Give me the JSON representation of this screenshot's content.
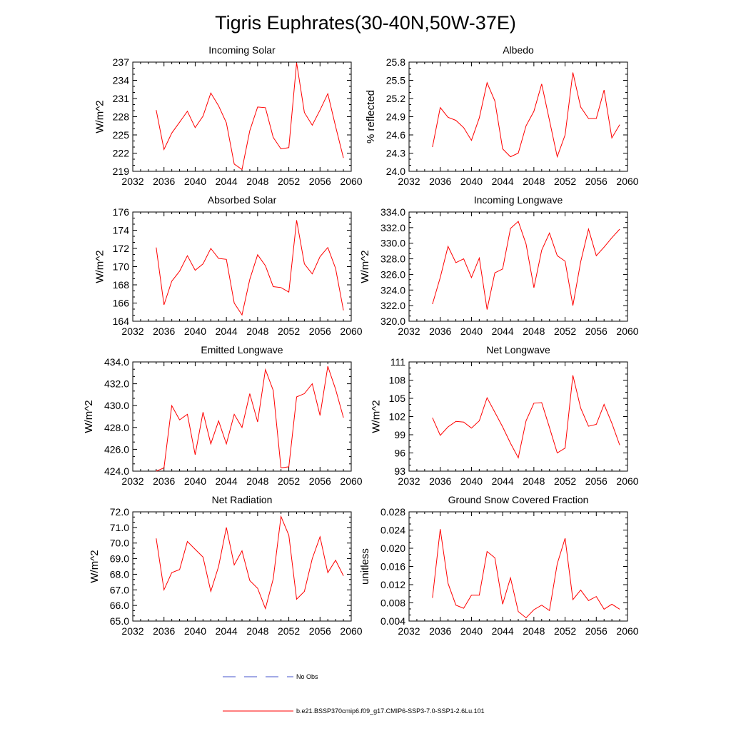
{
  "figure": {
    "title": "Tigris Euphrates(30-40N,50W-37E)"
  },
  "legend": {
    "entries": [
      {
        "label": "No Obs",
        "color": "#4455cc",
        "dashed": true
      },
      {
        "label": "b.e21.BSSP370cmip6.f09_g17.CMIP6-SSP3-7.0-SSP1-2.6Lu.101",
        "color": "#ff0000",
        "dashed": false
      }
    ]
  },
  "chart_data": [
    {
      "type": "line",
      "title": "Incoming Solar",
      "ylabel": "W/m^2",
      "xlim": [
        2032,
        2060
      ],
      "ylim": [
        219,
        237
      ],
      "xticks": [
        2032,
        2036,
        2040,
        2044,
        2048,
        2052,
        2056,
        2060
      ],
      "yticks": [
        "219",
        "222",
        "225",
        "228",
        "231",
        "234",
        "237"
      ],
      "series": [
        {
          "color": "#ff0000",
          "x": [
            2035,
            2036,
            2037,
            2038,
            2039,
            2040,
            2041,
            2042,
            2043,
            2044,
            2045,
            2046,
            2047,
            2048,
            2049,
            2050,
            2051,
            2052,
            2053,
            2054,
            2055,
            2056,
            2057,
            2058,
            2059
          ],
          "y": [
            229.1,
            222.6,
            225.3,
            227.1,
            228.9,
            226.2,
            228.1,
            231.9,
            229.8,
            227.0,
            220.2,
            219.3,
            225.7,
            229.6,
            229.5,
            224.6,
            222.7,
            222.9,
            236.9,
            228.7,
            226.6,
            229.1,
            231.8,
            226.4,
            221.2
          ]
        }
      ]
    },
    {
      "type": "line",
      "title": "Albedo",
      "ylabel": "% reflected",
      "xlim": [
        2032,
        2060
      ],
      "ylim": [
        24.0,
        25.8
      ],
      "xticks": [
        2032,
        2036,
        2040,
        2044,
        2048,
        2052,
        2056,
        2060
      ],
      "yticks": [
        "24.0",
        "24.3",
        "24.6",
        "24.9",
        "25.2",
        "25.5",
        "25.8"
      ],
      "series": [
        {
          "color": "#ff0000",
          "x": [
            2035,
            2036,
            2037,
            2038,
            2039,
            2040,
            2041,
            2042,
            2043,
            2044,
            2045,
            2046,
            2047,
            2048,
            2049,
            2050,
            2051,
            2052,
            2053,
            2054,
            2055,
            2056,
            2057,
            2058,
            2059
          ],
          "y": [
            24.4,
            25.05,
            24.89,
            24.84,
            24.72,
            24.51,
            24.88,
            25.46,
            25.16,
            24.37,
            24.24,
            24.3,
            24.75,
            24.99,
            25.44,
            24.84,
            24.24,
            24.6,
            25.63,
            25.06,
            24.87,
            24.87,
            25.34,
            24.55,
            24.77
          ]
        }
      ]
    },
    {
      "type": "line",
      "title": "Absorbed Solar",
      "ylabel": "W/m^2",
      "xlim": [
        2032,
        2060
      ],
      "ylim": [
        164,
        176
      ],
      "xticks": [
        2032,
        2036,
        2040,
        2044,
        2048,
        2052,
        2056,
        2060
      ],
      "yticks": [
        "164",
        "166",
        "168",
        "170",
        "172",
        "174",
        "176"
      ],
      "series": [
        {
          "color": "#ff0000",
          "x": [
            2035,
            2036,
            2037,
            2038,
            2039,
            2040,
            2041,
            2042,
            2043,
            2044,
            2045,
            2046,
            2047,
            2048,
            2049,
            2050,
            2051,
            2052,
            2053,
            2054,
            2055,
            2056,
            2057,
            2058,
            2059
          ],
          "y": [
            172.1,
            165.8,
            168.4,
            169.5,
            171.2,
            169.6,
            170.3,
            172.0,
            170.9,
            170.8,
            166.0,
            164.7,
            168.6,
            171.3,
            170.1,
            167.8,
            167.7,
            167.2,
            175.1,
            170.3,
            169.2,
            171.1,
            172.1,
            169.8,
            165.2
          ]
        }
      ]
    },
    {
      "type": "line",
      "title": "Incoming Longwave",
      "ylabel": "W/m^2",
      "xlim": [
        2032,
        2060
      ],
      "ylim": [
        320.0,
        334.0
      ],
      "xticks": [
        2032,
        2036,
        2040,
        2044,
        2048,
        2052,
        2056,
        2060
      ],
      "yticks": [
        "320.0",
        "322.0",
        "324.0",
        "326.0",
        "328.0",
        "330.0",
        "332.0",
        "334.0"
      ],
      "series": [
        {
          "color": "#ff0000",
          "x": [
            2035,
            2036,
            2037,
            2038,
            2039,
            2040,
            2041,
            2042,
            2043,
            2044,
            2045,
            2046,
            2047,
            2048,
            2049,
            2050,
            2051,
            2052,
            2053,
            2054,
            2055,
            2056,
            2057,
            2058,
            2059
          ],
          "y": [
            322.2,
            325.6,
            329.6,
            327.5,
            328.0,
            325.6,
            328.1,
            321.5,
            326.2,
            326.7,
            331.9,
            332.8,
            329.9,
            324.3,
            329.1,
            331.3,
            328.4,
            327.7,
            322.0,
            327.6,
            331.8,
            328.4,
            329.5,
            330.7,
            331.8
          ]
        }
      ]
    },
    {
      "type": "line",
      "title": "Emitted Longwave",
      "ylabel": "W/m^2",
      "xlim": [
        2032,
        2060
      ],
      "ylim": [
        424.0,
        434.0
      ],
      "xticks": [
        2032,
        2036,
        2040,
        2044,
        2048,
        2052,
        2056,
        2060
      ],
      "yticks": [
        "424.0",
        "426.0",
        "428.0",
        "430.0",
        "432.0",
        "434.0"
      ],
      "series": [
        {
          "color": "#ff0000",
          "x": [
            2035,
            2036,
            2037,
            2038,
            2039,
            2040,
            2041,
            2042,
            2043,
            2044,
            2045,
            2046,
            2047,
            2048,
            2049,
            2050,
            2051,
            2052,
            2053,
            2054,
            2055,
            2056,
            2057,
            2058,
            2059
          ],
          "y": [
            424.0,
            424.3,
            430.0,
            428.7,
            429.2,
            425.5,
            429.4,
            426.5,
            428.6,
            426.5,
            429.2,
            428.0,
            431.1,
            428.5,
            433.3,
            431.4,
            424.3,
            424.4,
            430.8,
            431.1,
            432.0,
            429.1,
            433.6,
            431.5,
            428.9
          ]
        }
      ]
    },
    {
      "type": "line",
      "title": "Net Longwave",
      "ylabel": "W/m^2",
      "xlim": [
        2032,
        2060
      ],
      "ylim": [
        93,
        111
      ],
      "xticks": [
        2032,
        2036,
        2040,
        2044,
        2048,
        2052,
        2056,
        2060
      ],
      "yticks": [
        "93",
        "96",
        "99",
        "102",
        "105",
        "108",
        "111"
      ],
      "series": [
        {
          "color": "#ff0000",
          "x": [
            2035,
            2036,
            2037,
            2038,
            2039,
            2040,
            2041,
            2042,
            2043,
            2044,
            2045,
            2046,
            2047,
            2048,
            2049,
            2050,
            2051,
            2052,
            2053,
            2054,
            2055,
            2056,
            2057,
            2058,
            2059
          ],
          "y": [
            101.8,
            98.9,
            100.3,
            101.2,
            101.1,
            100.1,
            101.3,
            105.1,
            102.7,
            100.3,
            97.6,
            95.2,
            101.3,
            104.2,
            104.3,
            100.2,
            96.0,
            96.8,
            108.8,
            103.4,
            100.4,
            100.7,
            104.0,
            100.9,
            97.3
          ]
        }
      ]
    },
    {
      "type": "line",
      "title": "Net Radiation",
      "ylabel": "W/m^2",
      "xlim": [
        2032,
        2060
      ],
      "ylim": [
        65.0,
        72.0
      ],
      "xticks": [
        2032,
        2036,
        2040,
        2044,
        2048,
        2052,
        2056,
        2060
      ],
      "yticks": [
        "65.0",
        "66.0",
        "67.0",
        "68.0",
        "69.0",
        "70.0",
        "71.0",
        "72.0"
      ],
      "series": [
        {
          "color": "#ff0000",
          "x": [
            2035,
            2036,
            2037,
            2038,
            2039,
            2040,
            2041,
            2042,
            2043,
            2044,
            2045,
            2046,
            2047,
            2048,
            2049,
            2050,
            2051,
            2052,
            2053,
            2054,
            2055,
            2056,
            2057,
            2058,
            2059
          ],
          "y": [
            70.3,
            67.0,
            68.1,
            68.3,
            70.1,
            69.6,
            69.1,
            66.9,
            68.5,
            71.0,
            68.6,
            69.5,
            67.6,
            67.1,
            65.8,
            67.7,
            71.7,
            70.5,
            66.4,
            66.9,
            69.0,
            70.4,
            68.1,
            68.9,
            67.9
          ]
        }
      ]
    },
    {
      "type": "line",
      "title": "Ground Snow Covered Fraction",
      "ylabel": "unitless",
      "xlim": [
        2032,
        2060
      ],
      "ylim": [
        0.004,
        0.028
      ],
      "xticks": [
        2032,
        2036,
        2040,
        2044,
        2048,
        2052,
        2056,
        2060
      ],
      "yticks": [
        "0.004",
        "0.008",
        "0.012",
        "0.016",
        "0.020",
        "0.024",
        "0.028"
      ],
      "series": [
        {
          "color": "#ff0000",
          "x": [
            2035,
            2036,
            2037,
            2038,
            2039,
            2040,
            2041,
            2042,
            2043,
            2044,
            2045,
            2046,
            2047,
            2048,
            2049,
            2050,
            2051,
            2052,
            2053,
            2054,
            2055,
            2056,
            2057,
            2058,
            2059
          ],
          "y": [
            0.0091,
            0.0242,
            0.0123,
            0.0075,
            0.0068,
            0.0097,
            0.0097,
            0.0193,
            0.0179,
            0.0077,
            0.0135,
            0.0061,
            0.0047,
            0.0065,
            0.0075,
            0.0063,
            0.0166,
            0.0222,
            0.0087,
            0.0108,
            0.0085,
            0.0094,
            0.0066,
            0.0077,
            0.0066
          ]
        }
      ]
    }
  ]
}
